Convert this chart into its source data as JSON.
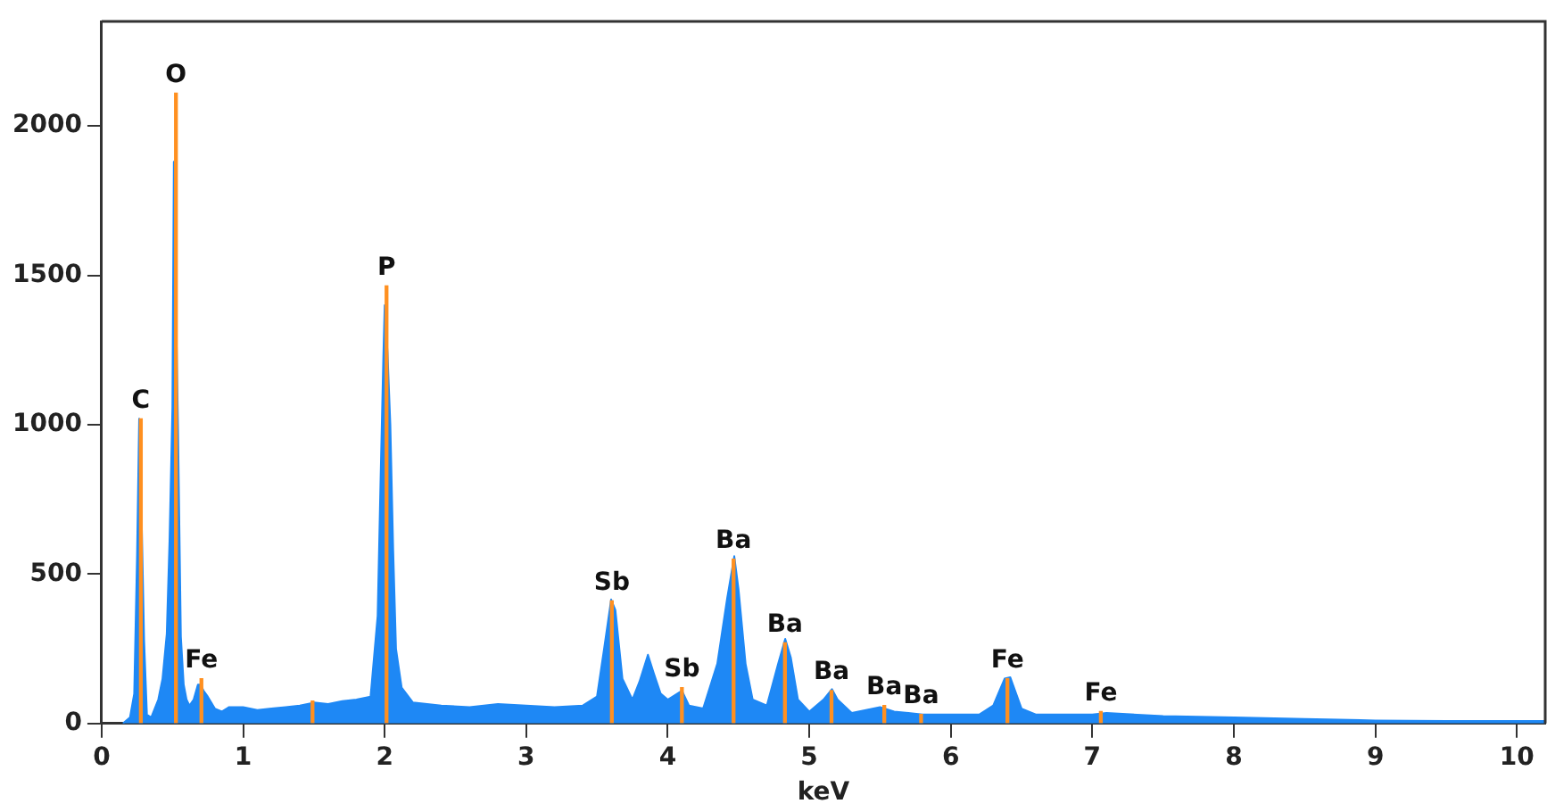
{
  "chart_data": {
    "type": "area",
    "xlabel": "keV",
    "series": [
      {
        "color": "#1e88f5",
        "x": [
          0.15,
          0.2,
          0.23,
          0.25,
          0.265,
          0.28,
          0.3,
          0.32,
          0.35,
          0.4,
          0.43,
          0.46,
          0.48,
          0.5,
          0.51,
          0.525,
          0.54,
          0.56,
          0.58,
          0.6,
          0.62,
          0.65,
          0.68,
          0.7,
          0.72,
          0.75,
          0.8,
          0.85,
          0.9,
          1.0,
          1.1,
          1.2,
          1.3,
          1.4,
          1.5,
          1.6,
          1.7,
          1.8,
          1.9,
          1.95,
          1.97,
          1.99,
          2.0,
          2.02,
          2.04,
          2.06,
          2.08,
          2.12,
          2.2,
          2.4,
          2.6,
          2.8,
          3.0,
          3.2,
          3.4,
          3.5,
          3.55,
          3.6,
          3.63,
          3.68,
          3.75,
          3.8,
          3.86,
          3.9,
          3.95,
          4.0,
          4.1,
          4.15,
          4.25,
          4.35,
          4.42,
          4.47,
          4.5,
          4.55,
          4.6,
          4.7,
          4.78,
          4.83,
          4.87,
          4.92,
          5.0,
          5.1,
          5.16,
          5.2,
          5.3,
          5.5,
          5.6,
          5.8,
          6.0,
          6.2,
          6.3,
          6.38,
          6.42,
          6.5,
          6.6,
          7.0,
          7.1,
          7.5,
          8.0,
          8.5,
          9.0,
          9.5,
          10.0,
          10.2
        ],
        "values": [
          0,
          20,
          100,
          560,
          1020,
          750,
          280,
          30,
          20,
          80,
          150,
          300,
          620,
          1060,
          1880,
          1410,
          980,
          290,
          130,
          80,
          60,
          80,
          130,
          130,
          110,
          90,
          50,
          40,
          55,
          55,
          45,
          50,
          55,
          60,
          70,
          65,
          75,
          80,
          90,
          360,
          800,
          1220,
          1400,
          1240,
          1000,
          580,
          250,
          120,
          70,
          60,
          55,
          65,
          60,
          55,
          60,
          90,
          250,
          415,
          380,
          150,
          80,
          140,
          230,
          170,
          100,
          80,
          110,
          60,
          50,
          200,
          420,
          560,
          450,
          200,
          80,
          60,
          200,
          283,
          220,
          80,
          40,
          80,
          115,
          80,
          35,
          55,
          40,
          30,
          30,
          30,
          60,
          150,
          155,
          50,
          30,
          30,
          35,
          25,
          20,
          15,
          10,
          8,
          8,
          8
        ]
      },
      {
        "type": "bar",
        "color": "#ff9020",
        "x": [
          0.277,
          0.525,
          0.705,
          1.49,
          2.013,
          3.605,
          4.1,
          4.465,
          4.828,
          5.157,
          5.53,
          5.79,
          6.4,
          7.06
        ],
        "values": [
          1020,
          2110,
          150,
          75,
          1465,
          410,
          120,
          550,
          270,
          110,
          60,
          30,
          150,
          40
        ],
        "value_labels": [
          "C",
          "O",
          "Fe",
          null,
          "P",
          "Sb",
          "Sb",
          "Ba",
          "Ba",
          "Ba",
          "Ba",
          "Ba",
          "Fe",
          "Fe"
        ]
      }
    ],
    "xlim": [
      0,
      10.2
    ],
    "xticks": [
      0,
      1,
      2,
      3,
      4,
      5,
      6,
      7,
      8,
      9,
      10
    ],
    "ylim": [
      0,
      2350
    ],
    "yticks": [
      0,
      500,
      1000,
      1500,
      2000
    ],
    "grid": false,
    "legend": false
  }
}
